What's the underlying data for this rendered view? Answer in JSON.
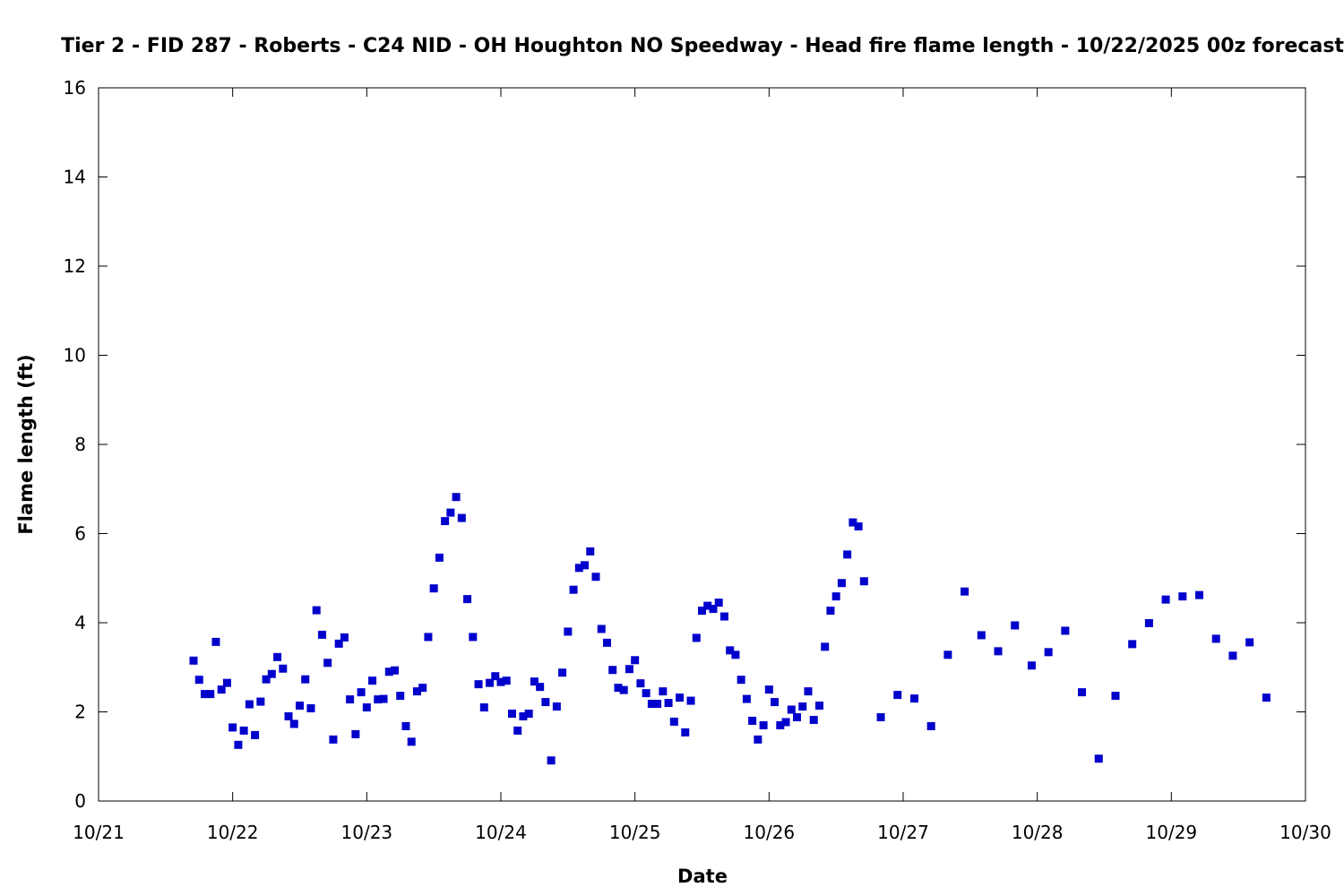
{
  "chart_data": {
    "type": "scatter",
    "title": "Tier 2 - FID 287 - Roberts - C24 NID - OH Houghton NO Speedway - Head fire flame length - 10/22/2025 00z forecast",
    "xlabel": "Date",
    "ylabel": "Flame length (ft)",
    "xlim": [
      "10/21",
      "10/30"
    ],
    "ylim": [
      0,
      16
    ],
    "x_ticks": [
      "10/21",
      "10/22",
      "10/23",
      "10/24",
      "10/25",
      "10/26",
      "10/27",
      "10/28",
      "10/29",
      "10/30"
    ],
    "y_ticks": [
      "0",
      "2",
      "4",
      "6",
      "8",
      "10",
      "12",
      "14",
      "16"
    ],
    "grid": false,
    "marker": "square",
    "color": "#0000cc",
    "series": [
      {
        "points": [
          [
            "10/21 17:00",
            3.15
          ],
          [
            "10/21 18:00",
            2.72
          ],
          [
            "10/21 19:00",
            2.4
          ],
          [
            "10/21 20:00",
            2.4
          ],
          [
            "10/21 21:00",
            3.57
          ],
          [
            "10/21 22:00",
            2.5
          ],
          [
            "10/21 23:00",
            2.65
          ],
          [
            "10/22 00:00",
            1.65
          ],
          [
            "10/22 01:00",
            1.26
          ],
          [
            "10/22 02:00",
            1.58
          ],
          [
            "10/22 03:00",
            2.17
          ],
          [
            "10/22 04:00",
            1.48
          ],
          [
            "10/22 05:00",
            2.23
          ],
          [
            "10/22 06:00",
            2.73
          ],
          [
            "10/22 07:00",
            2.85
          ],
          [
            "10/22 08:00",
            3.23
          ],
          [
            "10/22 09:00",
            2.97
          ],
          [
            "10/22 10:00",
            1.9
          ],
          [
            "10/22 11:00",
            1.73
          ],
          [
            "10/22 12:00",
            2.14
          ],
          [
            "10/22 13:00",
            2.73
          ],
          [
            "10/22 14:00",
            2.08
          ],
          [
            "10/22 15:00",
            4.28
          ],
          [
            "10/22 16:00",
            3.73
          ],
          [
            "10/22 17:00",
            3.1
          ],
          [
            "10/22 18:00",
            1.38
          ],
          [
            "10/22 19:00",
            3.53
          ],
          [
            "10/22 20:00",
            3.67
          ],
          [
            "10/22 21:00",
            2.28
          ],
          [
            "10/22 22:00",
            1.5
          ],
          [
            "10/22 23:00",
            2.44
          ],
          [
            "10/23 00:00",
            2.1
          ],
          [
            "10/23 01:00",
            2.7
          ],
          [
            "10/23 02:00",
            2.28
          ],
          [
            "10/23 03:00",
            2.29
          ],
          [
            "10/23 04:00",
            2.9
          ],
          [
            "10/23 05:00",
            2.93
          ],
          [
            "10/23 06:00",
            2.36
          ],
          [
            "10/23 07:00",
            1.68
          ],
          [
            "10/23 08:00",
            1.33
          ],
          [
            "10/23 09:00",
            2.46
          ],
          [
            "10/23 10:00",
            2.54
          ],
          [
            "10/23 11:00",
            3.68
          ],
          [
            "10/23 12:00",
            4.77
          ],
          [
            "10/23 13:00",
            5.46
          ],
          [
            "10/23 14:00",
            6.28
          ],
          [
            "10/23 15:00",
            6.47
          ],
          [
            "10/23 16:00",
            6.82
          ],
          [
            "10/23 17:00",
            6.35
          ],
          [
            "10/23 18:00",
            4.53
          ],
          [
            "10/23 19:00",
            3.68
          ],
          [
            "10/23 20:00",
            2.62
          ],
          [
            "10/23 21:00",
            2.1
          ],
          [
            "10/23 22:00",
            2.65
          ],
          [
            "10/23 23:00",
            2.8
          ],
          [
            "10/24 00:00",
            2.67
          ],
          [
            "10/24 01:00",
            2.7
          ],
          [
            "10/24 02:00",
            1.96
          ],
          [
            "10/24 03:00",
            1.58
          ],
          [
            "10/24 04:00",
            1.9
          ],
          [
            "10/24 05:00",
            1.96
          ],
          [
            "10/24 06:00",
            2.68
          ],
          [
            "10/24 07:00",
            2.56
          ],
          [
            "10/24 08:00",
            2.22
          ],
          [
            "10/24 09:00",
            0.91
          ],
          [
            "10/24 10:00",
            2.12
          ],
          [
            "10/24 11:00",
            2.88
          ],
          [
            "10/24 12:00",
            3.8
          ],
          [
            "10/24 13:00",
            4.74
          ],
          [
            "10/24 14:00",
            5.23
          ],
          [
            "10/24 15:00",
            5.29
          ],
          [
            "10/24 16:00",
            5.6
          ],
          [
            "10/24 17:00",
            5.03
          ],
          [
            "10/24 18:00",
            3.86
          ],
          [
            "10/24 19:00",
            3.55
          ],
          [
            "10/24 20:00",
            2.94
          ],
          [
            "10/24 21:00",
            2.54
          ],
          [
            "10/24 22:00",
            2.49
          ],
          [
            "10/24 23:00",
            2.96
          ],
          [
            "10/25 00:00",
            3.16
          ],
          [
            "10/25 01:00",
            2.64
          ],
          [
            "10/25 02:00",
            2.42
          ],
          [
            "10/25 03:00",
            2.18
          ],
          [
            "10/25 04:00",
            2.18
          ],
          [
            "10/25 05:00",
            2.46
          ],
          [
            "10/25 06:00",
            2.2
          ],
          [
            "10/25 07:00",
            1.78
          ],
          [
            "10/25 08:00",
            2.32
          ],
          [
            "10/25 09:00",
            1.54
          ],
          [
            "10/25 10:00",
            2.25
          ],
          [
            "10/25 11:00",
            3.66
          ],
          [
            "10/25 12:00",
            4.27
          ],
          [
            "10/25 13:00",
            4.38
          ],
          [
            "10/25 14:00",
            4.31
          ],
          [
            "10/25 15:00",
            4.45
          ],
          [
            "10/25 16:00",
            4.14
          ],
          [
            "10/25 17:00",
            3.38
          ],
          [
            "10/25 18:00",
            3.28
          ],
          [
            "10/25 19:00",
            2.72
          ],
          [
            "10/25 20:00",
            2.29
          ],
          [
            "10/25 21:00",
            1.8
          ],
          [
            "10/25 22:00",
            1.38
          ],
          [
            "10/25 23:00",
            1.7
          ],
          [
            "10/26 00:00",
            2.5
          ],
          [
            "10/26 01:00",
            2.22
          ],
          [
            "10/26 02:00",
            1.7
          ],
          [
            "10/26 03:00",
            1.77
          ],
          [
            "10/26 04:00",
            2.05
          ],
          [
            "10/26 05:00",
            1.88
          ],
          [
            "10/26 06:00",
            2.12
          ],
          [
            "10/26 07:00",
            2.46
          ],
          [
            "10/26 08:00",
            1.82
          ],
          [
            "10/26 09:00",
            2.14
          ],
          [
            "10/26 10:00",
            3.46
          ],
          [
            "10/26 11:00",
            4.27
          ],
          [
            "10/26 12:00",
            4.59
          ],
          [
            "10/26 13:00",
            4.89
          ],
          [
            "10/26 14:00",
            5.53
          ],
          [
            "10/26 15:00",
            6.25
          ],
          [
            "10/26 16:00",
            6.16
          ],
          [
            "10/26 17:00",
            4.93
          ],
          [
            "10/26 20:00",
            1.88
          ],
          [
            "10/26 23:00",
            2.38
          ],
          [
            "10/27 02:00",
            2.3
          ],
          [
            "10/27 05:00",
            1.68
          ],
          [
            "10/27 08:00",
            3.28
          ],
          [
            "10/27 11:00",
            4.7
          ],
          [
            "10/27 14:00",
            3.72
          ],
          [
            "10/27 17:00",
            3.36
          ],
          [
            "10/27 20:00",
            3.94
          ],
          [
            "10/27 23:00",
            3.04
          ],
          [
            "10/28 02:00",
            3.34
          ],
          [
            "10/28 05:00",
            3.82
          ],
          [
            "10/28 08:00",
            2.44
          ],
          [
            "10/28 11:00",
            0.95
          ],
          [
            "10/28 14:00",
            2.36
          ],
          [
            "10/28 17:00",
            3.52
          ],
          [
            "10/28 20:00",
            3.99
          ],
          [
            "10/28 23:00",
            4.52
          ],
          [
            "10/29 02:00",
            4.59
          ],
          [
            "10/29 05:00",
            4.62
          ],
          [
            "10/29 08:00",
            3.64
          ],
          [
            "10/29 11:00",
            3.26
          ],
          [
            "10/29 14:00",
            3.56
          ],
          [
            "10/29 17:00",
            2.32
          ]
        ]
      }
    ]
  }
}
